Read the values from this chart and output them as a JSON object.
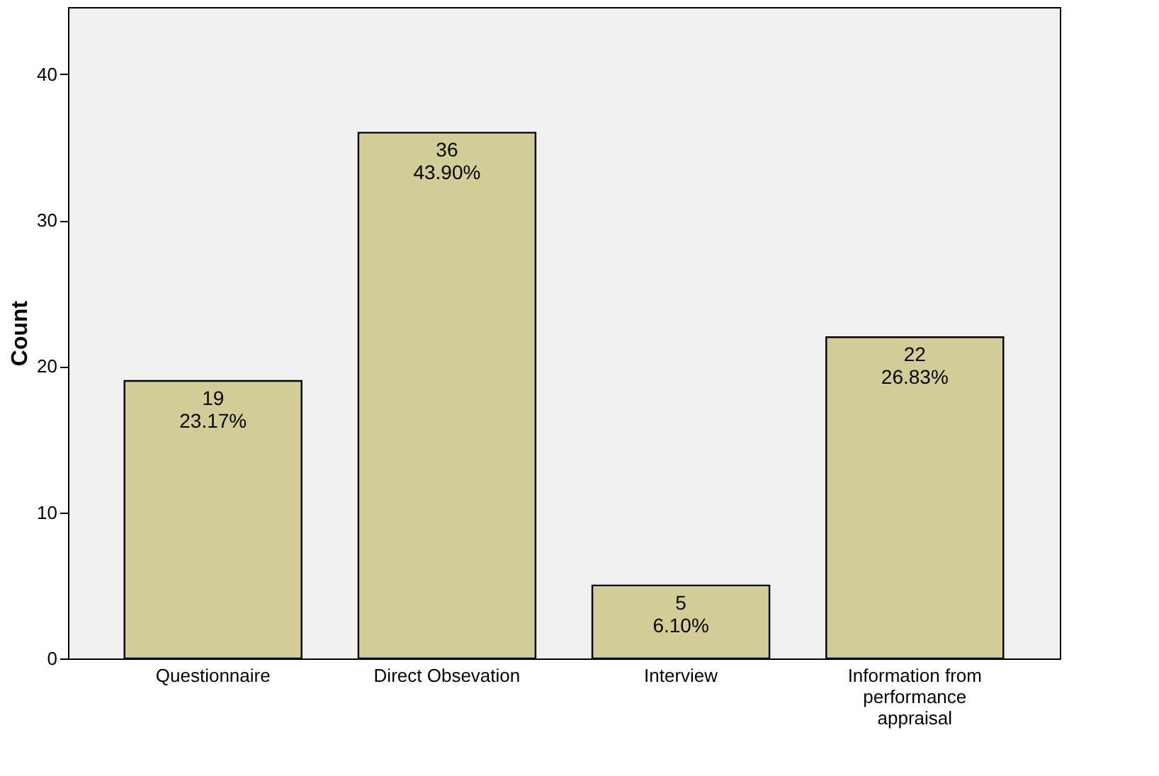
{
  "chart_data": {
    "type": "bar",
    "categories": [
      "Questionnaire",
      "Direct Obsevation",
      "Interview",
      "Information from performance appraisal"
    ],
    "values": [
      19,
      36,
      5,
      22
    ],
    "value_labels": [
      "19\n23.17%",
      "36\n43.90%",
      "5\n6.10%",
      "22\n26.83%"
    ],
    "color": "#d2cc96",
    "ylabel": "Count",
    "ylim": [
      0,
      44.6
    ],
    "yticks": [
      0,
      10,
      20,
      30,
      40
    ],
    "grid": false
  }
}
